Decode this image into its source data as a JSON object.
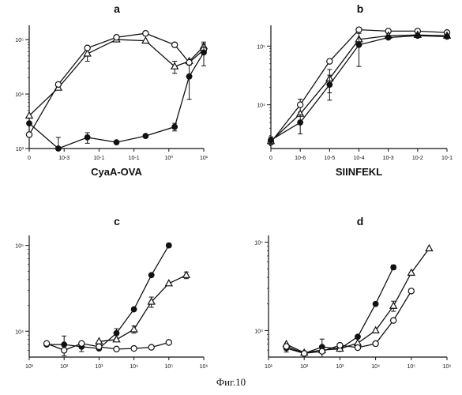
{
  "figure": {
    "caption": "Фиг.10"
  },
  "chart_data": [
    {
      "type": "line",
      "panel": "a",
      "xlabel": "CyaA-OVA",
      "ylabel": "",
      "x_tick_labels": [
        "0",
        "10-3",
        "10-1",
        "10-1",
        "10⁰",
        "10¹"
      ],
      "y_tick_labels": [
        "10³",
        "10⁴",
        "10⁵"
      ],
      "y_scale": "log",
      "ylim": [
        1000,
        160000
      ],
      "grid": false,
      "series": [
        {
          "marker": "triangle-open",
          "filled": false,
          "points": [
            [
              0,
              4000
            ],
            [
              1,
              13000
            ],
            [
              2,
              55000
            ],
            [
              3,
              100000
            ],
            [
              4,
              95000
            ],
            [
              5,
              32000
            ],
            [
              5.5,
              40000
            ],
            [
              6,
              75000
            ]
          ],
          "errors": [
            0,
            0,
            15000,
            0,
            0,
            8000,
            0,
            15000
          ]
        },
        {
          "marker": "circle-open",
          "filled": false,
          "points": [
            [
              0,
              1800
            ],
            [
              1,
              15000
            ],
            [
              2,
              70000
            ],
            [
              3,
              110000
            ],
            [
              4,
              130000
            ],
            [
              5,
              80000
            ],
            [
              5.5,
              38000
            ],
            [
              6,
              65000
            ]
          ],
          "errors": [
            0,
            0,
            0,
            0,
            0,
            0,
            0,
            0
          ]
        },
        {
          "marker": "circle-filled",
          "filled": true,
          "points": [
            [
              0,
              2900
            ],
            [
              1,
              1000
            ],
            [
              2,
              1600
            ],
            [
              3,
              1300
            ],
            [
              4,
              1700
            ],
            [
              5,
              2500
            ],
            [
              5.5,
              21000
            ],
            [
              6,
              58000
            ]
          ],
          "errors": [
            0,
            600,
            350,
            0,
            0,
            400,
            13000,
            25000
          ]
        }
      ]
    },
    {
      "type": "line",
      "panel": "b",
      "xlabel": "SIINFEKL",
      "ylabel": "",
      "x_tick_labels": [
        "0",
        "10-6",
        "10-5",
        "10-4",
        "10-3",
        "10-2",
        "10-1"
      ],
      "y_tick_labels": [
        "10⁴",
        "10⁵"
      ],
      "y_scale": "log",
      "ylim": [
        1800,
        200000
      ],
      "grid": false,
      "series": [
        {
          "marker": "circle-open",
          "filled": false,
          "points": [
            [
              0,
              2300
            ],
            [
              1,
              10000
            ],
            [
              2,
              55000
            ],
            [
              3,
              190000
            ],
            [
              4,
              180000
            ],
            [
              5,
              180000
            ],
            [
              6,
              170000
            ]
          ],
          "errors": [
            0,
            2500,
            0,
            0,
            0,
            0,
            0
          ]
        },
        {
          "marker": "triangle-open",
          "filled": false,
          "points": [
            [
              0,
              2400
            ],
            [
              1,
              7000
            ],
            [
              2,
              28000
            ],
            [
              3,
              130000
            ],
            [
              4,
              150000
            ],
            [
              5,
              155000
            ],
            [
              6,
              150000
            ]
          ],
          "errors": [
            0,
            0,
            12000,
            0,
            0,
            0,
            0
          ]
        },
        {
          "marker": "circle-filled",
          "filled": true,
          "points": [
            [
              0,
              2500
            ],
            [
              1,
              5000
            ],
            [
              2,
              22000
            ],
            [
              3,
              105000
            ],
            [
              4,
              140000
            ],
            [
              5,
              150000
            ],
            [
              6,
              145000
            ]
          ],
          "errors": [
            350,
            1800,
            10000,
            60000,
            0,
            0,
            0
          ]
        }
      ]
    },
    {
      "type": "line",
      "panel": "c",
      "xlabel": "",
      "ylabel": "",
      "x_tick_labels": [
        "10¹",
        "10²",
        "10³",
        "10⁴",
        "10⁵",
        "10⁶"
      ],
      "y_tick_labels": [
        "10⁴",
        "10⁵"
      ],
      "y_scale": "log",
      "ylim": [
        5000,
        120000
      ],
      "grid": false,
      "series": [
        {
          "marker": "circle-filled",
          "filled": true,
          "points": [
            [
              1.5,
              7000
            ],
            [
              2,
              7000
            ],
            [
              2.5,
              6600
            ],
            [
              3,
              6300
            ],
            [
              3.5,
              9500
            ],
            [
              4,
              18000
            ],
            [
              4.5,
              45000
            ],
            [
              5,
              100000
            ]
          ],
          "errors": [
            0,
            1800,
            800,
            0,
            1200,
            0,
            0,
            5000
          ]
        },
        {
          "marker": "triangle-open",
          "filled": false,
          "points": [
            [
              3,
              7600
            ],
            [
              3.5,
              8000
            ],
            [
              4,
              10500
            ],
            [
              4.5,
              22000
            ],
            [
              5,
              36000
            ],
            [
              5.5,
              45000
            ]
          ],
          "errors": [
            0,
            0,
            1000,
            3000,
            0,
            4000
          ]
        },
        {
          "marker": "circle-open",
          "filled": false,
          "points": [
            [
              1.5,
              7200
            ],
            [
              2,
              6000
            ],
            [
              2.5,
              7200
            ],
            [
              3,
              6600
            ],
            [
              3.5,
              6200
            ],
            [
              4,
              6300
            ],
            [
              4.5,
              6500
            ],
            [
              5,
              7400
            ]
          ],
          "errors": [
            0,
            0,
            0,
            0,
            0,
            0,
            0,
            0
          ]
        }
      ]
    },
    {
      "type": "line",
      "panel": "d",
      "xlabel": "",
      "ylabel": "",
      "x_tick_labels": [
        "10¹",
        "10²",
        "10³",
        "10⁴",
        "10⁵",
        "10⁶"
      ],
      "y_tick_labels": [
        "10⁴",
        "10⁵"
      ],
      "y_scale": "log",
      "ylim": [
        5000,
        110000
      ],
      "grid": false,
      "series": [
        {
          "marker": "circle-filled",
          "filled": true,
          "points": [
            [
              1.5,
              6300
            ],
            [
              2,
              5500
            ],
            [
              2.5,
              6500
            ],
            [
              3,
              6200
            ],
            [
              3.5,
              8500
            ],
            [
              4,
              20000
            ],
            [
              4.5,
              52000
            ]
          ],
          "errors": [
            600,
            0,
            1500,
            0,
            0,
            0,
            3000
          ]
        },
        {
          "marker": "triangle-open",
          "filled": false,
          "points": [
            [
              1.5,
              7000
            ],
            [
              2,
              5600
            ],
            [
              2.5,
              6000
            ],
            [
              3,
              6200
            ],
            [
              3.5,
              7200
            ],
            [
              4,
              10000
            ],
            [
              4.5,
              19000
            ],
            [
              5,
              45000
            ],
            [
              5.5,
              85000
            ]
          ],
          "errors": [
            0,
            0,
            0,
            0,
            0,
            0,
            2500,
            0,
            0
          ]
        },
        {
          "marker": "circle-open",
          "filled": false,
          "points": [
            [
              1.5,
              6600
            ],
            [
              2,
              5500
            ],
            [
              2.5,
              5800
            ],
            [
              3,
              6800
            ],
            [
              3.5,
              6400
            ],
            [
              4,
              7100
            ],
            [
              4.5,
              13000
            ],
            [
              5,
              28000
            ]
          ],
          "errors": [
            0,
            0,
            0,
            0,
            0,
            0,
            0,
            0
          ]
        }
      ]
    }
  ]
}
